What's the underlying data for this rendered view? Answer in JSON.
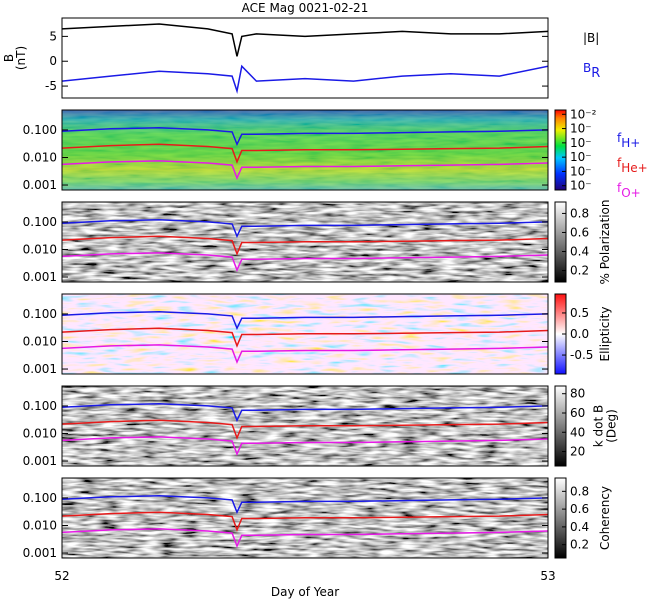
{
  "chart_data": [
    {
      "type": "line",
      "title": "ACE Mag 0021-02-21",
      "ylabel": [
        "B",
        "(nT)"
      ],
      "x": [
        52,
        52.1,
        52.2,
        52.3,
        52.35,
        52.36,
        52.37,
        52.4,
        52.5,
        52.6,
        52.7,
        52.8,
        52.9,
        53
      ],
      "xlim": [
        52,
        53
      ],
      "ylim": [
        -7.4,
        8.7
      ],
      "yticks": [
        -5,
        0,
        5
      ],
      "series": [
        {
          "name": "|B|",
          "color": "#000000",
          "values": [
            6.5,
            7,
            7.5,
            6.5,
            5.5,
            1,
            5,
            5.5,
            5,
            5.5,
            6,
            5.5,
            5.5,
            6
          ]
        },
        {
          "name": "B",
          "name_sub": "R",
          "color": "#1a1ae6",
          "values": [
            -4,
            -3,
            -2,
            -2.5,
            -3,
            -6,
            -1,
            -4,
            -3.5,
            -4,
            -3,
            -2.5,
            -3,
            -1
          ]
        }
      ]
    },
    {
      "type": "spectrogram",
      "colormap": "rainbow",
      "log_y": true,
      "x": [
        52,
        52.1,
        52.2,
        52.3,
        52.35,
        52.36,
        52.37,
        52.4,
        52.5,
        52.6,
        52.7,
        52.8,
        52.9,
        53
      ],
      "xlim": [
        52,
        53
      ],
      "ylim": [
        0.00066,
        0.53
      ],
      "yticks": [
        {
          "value": 0.001,
          "label": "0.001"
        },
        {
          "value": 0.01,
          "label": "0.010"
        },
        {
          "value": 0.1,
          "label": "0.100"
        }
      ],
      "colorbar": {
        "lim": [
          -7.3,
          -1.7
        ],
        "ticks": [
          {
            "value": -2,
            "label": "10⁻²"
          },
          {
            "value": -3,
            "label": "10⁻"
          },
          {
            "value": -4,
            "label": "10⁻"
          },
          {
            "value": -5,
            "label": "10⁻"
          },
          {
            "value": -6,
            "label": "10⁻"
          },
          {
            "value": -7,
            "label": "10⁻"
          }
        ]
      },
      "series": [
        {
          "name": "f",
          "name_sub": "H+",
          "color": "#1a1ae6",
          "values": [
            0.09,
            0.11,
            0.12,
            0.1,
            0.085,
            0.03,
            0.07,
            0.07,
            0.075,
            0.075,
            0.08,
            0.085,
            0.09,
            0.1
          ]
        },
        {
          "name": "f",
          "name_sub": "He+",
          "color": "#e61a1a",
          "values": [
            0.022,
            0.027,
            0.03,
            0.025,
            0.021,
            0.007,
            0.018,
            0.018,
            0.019,
            0.019,
            0.02,
            0.021,
            0.022,
            0.025
          ]
        },
        {
          "name": "f",
          "name_sub": "O+",
          "color": "#e61ae6",
          "values": [
            0.0056,
            0.0069,
            0.0075,
            0.0063,
            0.0053,
            0.0018,
            0.0044,
            0.0044,
            0.0047,
            0.0047,
            0.005,
            0.0053,
            0.0056,
            0.0063
          ]
        }
      ]
    },
    {
      "type": "spectrogram",
      "colormap": "gray",
      "log_y": true,
      "xlim": [
        52,
        53
      ],
      "ylim": [
        0.00066,
        0.53
      ],
      "yticks": [
        {
          "value": 0.001,
          "label": "0.001"
        },
        {
          "value": 0.01,
          "label": "0.010"
        },
        {
          "value": 0.1,
          "label": "0.100"
        }
      ],
      "colorbar": {
        "label": [
          "% Polarization"
        ],
        "lim": [
          0.08,
          0.92
        ],
        "ticks": [
          0.2,
          0.4,
          0.6,
          0.8
        ]
      }
    },
    {
      "type": "spectrogram",
      "colormap": "bwr",
      "log_y": true,
      "xlim": [
        52,
        53
      ],
      "ylim": [
        0.00066,
        0.53
      ],
      "yticks": [
        {
          "value": 0.001,
          "label": "0.001"
        },
        {
          "value": 0.01,
          "label": "0.010"
        },
        {
          "value": 0.1,
          "label": "0.100"
        }
      ],
      "colorbar": {
        "label": [
          "Ellipticity"
        ],
        "lim": [
          -0.95,
          0.95
        ],
        "ticks": [
          -0.5,
          {
            "value": 0,
            "label": "0.0"
          },
          0.5
        ]
      }
    },
    {
      "type": "spectrogram",
      "colormap": "gray",
      "log_y": true,
      "xlim": [
        52,
        53
      ],
      "ylim": [
        0.00066,
        0.53
      ],
      "yticks": [
        {
          "value": 0.001,
          "label": "0.001"
        },
        {
          "value": 0.01,
          "label": "0.010"
        },
        {
          "value": 0.1,
          "label": "0.100"
        }
      ],
      "colorbar": {
        "label": [
          "k dot B",
          "(Deg)"
        ],
        "lim": [
          5,
          88
        ],
        "ticks": [
          20,
          40,
          60,
          80
        ]
      }
    },
    {
      "type": "spectrogram",
      "colormap": "gray",
      "log_y": true,
      "xlim": [
        52,
        53
      ],
      "ylim": [
        0.00066,
        0.53
      ],
      "yticks": [
        {
          "value": 0.001,
          "label": "0.001"
        },
        {
          "value": 0.01,
          "label": "0.010"
        },
        {
          "value": 0.1,
          "label": "0.100"
        }
      ],
      "colorbar": {
        "label": [
          "Coherency"
        ],
        "lim": [
          0.05,
          0.95
        ],
        "ticks": [
          0.2,
          0.4,
          0.6,
          0.8
        ]
      },
      "xticks": [
        52,
        53
      ],
      "xlabel": "Day of Year"
    }
  ]
}
